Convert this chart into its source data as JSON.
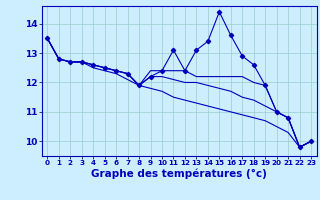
{
  "xlabel": "Graphe des températures (°c)",
  "background_color": "#cceeff",
  "line_color": "#0000bb",
  "grid_color": "#99cccc",
  "xlim": [
    -0.5,
    23.5
  ],
  "ylim": [
    9.5,
    14.6
  ],
  "yticks": [
    10,
    11,
    12,
    13,
    14
  ],
  "xticks": [
    0,
    1,
    2,
    3,
    4,
    5,
    6,
    7,
    8,
    9,
    10,
    11,
    12,
    13,
    14,
    15,
    16,
    17,
    18,
    19,
    20,
    21,
    22,
    23
  ],
  "series": {
    "main": [
      13.5,
      12.8,
      12.7,
      12.7,
      12.6,
      12.5,
      12.4,
      12.3,
      11.9,
      12.2,
      12.4,
      13.1,
      12.4,
      13.1,
      13.4,
      14.4,
      13.6,
      12.9,
      12.6,
      11.9,
      11.0,
      10.8,
      9.8,
      10.0
    ],
    "line2": [
      13.5,
      12.8,
      12.7,
      12.7,
      12.6,
      12.5,
      12.4,
      12.3,
      11.9,
      12.4,
      12.4,
      12.4,
      12.4,
      12.2,
      12.2,
      12.2,
      12.2,
      12.2,
      12.0,
      11.9,
      11.0,
      10.8,
      9.8,
      10.0
    ],
    "line3": [
      13.5,
      12.8,
      12.7,
      12.7,
      12.6,
      12.5,
      12.4,
      12.3,
      11.9,
      12.2,
      12.2,
      12.1,
      12.0,
      12.0,
      11.9,
      11.8,
      11.7,
      11.5,
      11.4,
      11.2,
      11.0,
      10.8,
      9.8,
      10.0
    ],
    "line4": [
      13.5,
      12.8,
      12.7,
      12.7,
      12.5,
      12.4,
      12.3,
      12.1,
      11.9,
      11.8,
      11.7,
      11.5,
      11.4,
      11.3,
      11.2,
      11.1,
      11.0,
      10.9,
      10.8,
      10.7,
      10.5,
      10.3,
      9.8,
      10.0
    ]
  },
  "ylabel_fontsize": 6.0,
  "xlabel_fontsize": 7.5,
  "xtick_fontsize": 5.2,
  "ytick_fontsize": 6.5
}
